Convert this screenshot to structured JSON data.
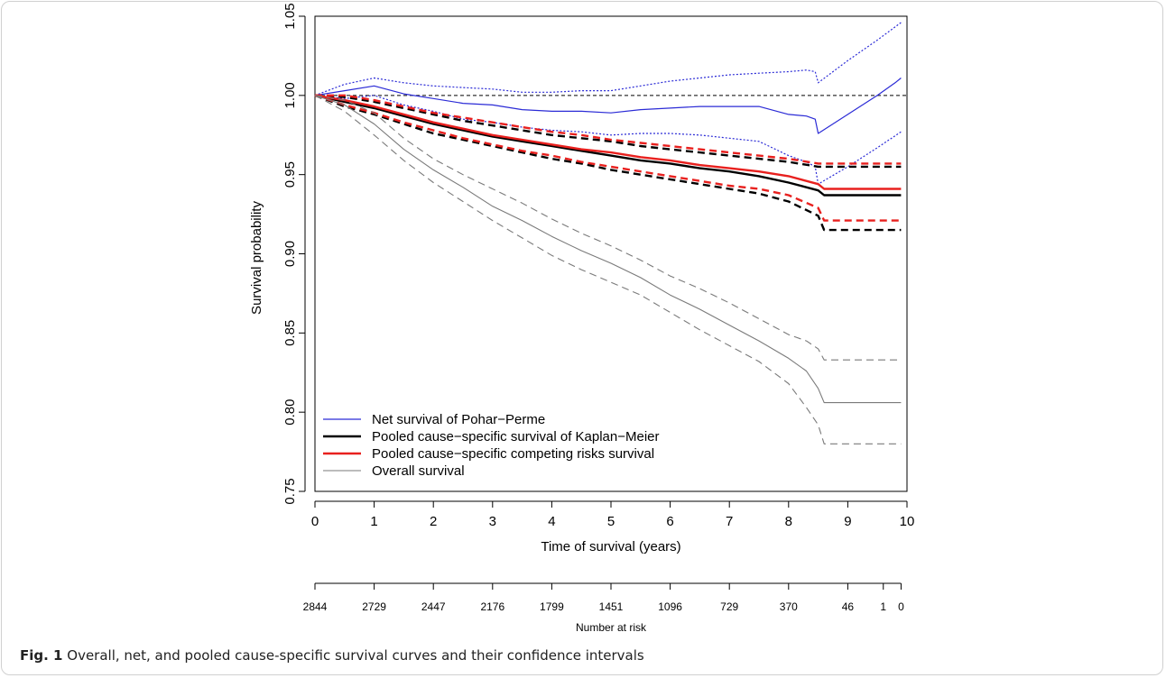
{
  "figure": {
    "label": "Fig. 1",
    "caption": "Overall, net, and pooled cause-specific survival curves and their confidence intervals"
  },
  "chart_data": {
    "type": "line",
    "xlabel": "Time of survival (years)",
    "ylabel": "Survival probability",
    "xlim": [
      0,
      10
    ],
    "ylim": [
      0.75,
      1.05
    ],
    "x_ticks": [
      0,
      1,
      2,
      3,
      4,
      5,
      6,
      7,
      8,
      9,
      10
    ],
    "y_ticks": [
      "0.75",
      "0.80",
      "0.85",
      "0.90",
      "0.95",
      "1.00",
      "1.05"
    ],
    "reference_line": 1.0,
    "legend_position": "bottom-left",
    "colors": {
      "net": "#2b2bd6",
      "km": "#000000",
      "cr": "#e8201e",
      "overall": "#7a7a7a"
    },
    "series": [
      {
        "name": "Net survival of Pohar−Perme",
        "color": "#2b2bd6",
        "style": "solid",
        "width": 1.2,
        "legend": true,
        "x": [
          0,
          0.5,
          1,
          1.5,
          2,
          2.5,
          3,
          3.5,
          4,
          4.5,
          5,
          5.5,
          6,
          6.5,
          7,
          7.5,
          8,
          8.3,
          8.45,
          8.5,
          9,
          9.5,
          9.8,
          9.9
        ],
        "y": [
          1.0,
          1.003,
          1.006,
          1.001,
          0.998,
          0.995,
          0.994,
          0.991,
          0.99,
          0.99,
          0.989,
          0.991,
          0.992,
          0.993,
          0.993,
          0.993,
          0.988,
          0.987,
          0.985,
          0.976,
          0.988,
          1.0,
          1.008,
          1.011
        ]
      },
      {
        "name": "",
        "color": "#2b2bd6",
        "style": "dotted",
        "width": 1.2,
        "legend": false,
        "x": [
          0,
          0.5,
          1,
          1.5,
          2,
          2.5,
          3,
          3.5,
          4,
          4.5,
          5,
          5.5,
          6,
          6.5,
          7,
          7.5,
          8,
          8.3,
          8.45,
          8.5,
          9,
          9.5,
          9.9
        ],
        "y": [
          1.0,
          1.007,
          1.011,
          1.008,
          1.006,
          1.005,
          1.004,
          1.002,
          1.002,
          1.003,
          1.003,
          1.006,
          1.009,
          1.011,
          1.013,
          1.014,
          1.015,
          1.016,
          1.015,
          1.008,
          1.022,
          1.035,
          1.046
        ]
      },
      {
        "name": "",
        "color": "#2b2bd6",
        "style": "dotted",
        "width": 1.2,
        "legend": false,
        "x": [
          0,
          0.5,
          1,
          1.5,
          2,
          2.5,
          3,
          3.5,
          4,
          4.5,
          5,
          5.5,
          6,
          6.5,
          7,
          7.5,
          8,
          8.3,
          8.45,
          8.5,
          9,
          9.5,
          9.9
        ],
        "y": [
          1.0,
          0.998,
          1.0,
          0.994,
          0.99,
          0.985,
          0.983,
          0.98,
          0.978,
          0.977,
          0.975,
          0.976,
          0.976,
          0.975,
          0.973,
          0.971,
          0.962,
          0.958,
          0.955,
          0.944,
          0.955,
          0.967,
          0.977
        ]
      },
      {
        "name": "Pooled cause−specific survival of Kaplan−Meier",
        "color": "#000000",
        "style": "solid",
        "width": 2.4,
        "legend": true,
        "x": [
          0,
          0.5,
          1,
          1.5,
          2,
          2.5,
          3,
          3.5,
          4,
          4.5,
          5,
          5.5,
          6,
          6.5,
          7,
          7.5,
          8,
          8.5,
          8.6,
          9,
          9.9
        ],
        "y": [
          1.0,
          0.996,
          0.992,
          0.987,
          0.982,
          0.978,
          0.974,
          0.971,
          0.968,
          0.965,
          0.962,
          0.959,
          0.957,
          0.954,
          0.952,
          0.949,
          0.945,
          0.94,
          0.937,
          0.937,
          0.937
        ]
      },
      {
        "name": "",
        "color": "#000000",
        "style": "dashed",
        "width": 2.4,
        "legend": false,
        "x": [
          0,
          0.5,
          1,
          1.5,
          2,
          2.5,
          3,
          3.5,
          4,
          4.5,
          5,
          5.5,
          6,
          6.5,
          7,
          7.5,
          8,
          8.5,
          8.6,
          9,
          9.9
        ],
        "y": [
          1.0,
          0.999,
          0.996,
          0.992,
          0.988,
          0.984,
          0.981,
          0.978,
          0.975,
          0.973,
          0.971,
          0.968,
          0.966,
          0.964,
          0.962,
          0.96,
          0.958,
          0.955,
          0.955,
          0.955,
          0.955
        ]
      },
      {
        "name": "",
        "color": "#000000",
        "style": "dashed",
        "width": 2.4,
        "legend": false,
        "x": [
          0,
          0.5,
          1,
          1.5,
          2,
          2.5,
          3,
          3.5,
          4,
          4.5,
          5,
          5.5,
          6,
          6.5,
          7,
          7.5,
          8,
          8.5,
          8.6,
          9,
          9.9
        ],
        "y": [
          1.0,
          0.993,
          0.988,
          0.982,
          0.976,
          0.972,
          0.968,
          0.964,
          0.96,
          0.957,
          0.953,
          0.95,
          0.947,
          0.944,
          0.941,
          0.938,
          0.933,
          0.924,
          0.915,
          0.915,
          0.915
        ]
      },
      {
        "name": "Pooled cause−specific competing risks survival",
        "color": "#e8201e",
        "style": "solid",
        "width": 2.4,
        "legend": true,
        "x": [
          0,
          0.5,
          1,
          1.5,
          2,
          2.5,
          3,
          3.5,
          4,
          4.5,
          5,
          5.5,
          6,
          6.5,
          7,
          7.5,
          8,
          8.5,
          8.6,
          9,
          9.9
        ],
        "y": [
          1.0,
          0.997,
          0.993,
          0.988,
          0.983,
          0.979,
          0.975,
          0.972,
          0.969,
          0.966,
          0.964,
          0.961,
          0.959,
          0.956,
          0.954,
          0.952,
          0.949,
          0.944,
          0.941,
          0.941,
          0.941
        ]
      },
      {
        "name": "",
        "color": "#e8201e",
        "style": "dashed",
        "width": 2.4,
        "legend": false,
        "x": [
          0,
          0.5,
          1,
          1.5,
          2,
          2.5,
          3,
          3.5,
          4,
          4.5,
          5,
          5.5,
          6,
          6.5,
          7,
          7.5,
          8,
          8.5,
          8.6,
          9,
          9.9
        ],
        "y": [
          1.0,
          1.0,
          0.997,
          0.993,
          0.989,
          0.986,
          0.983,
          0.98,
          0.977,
          0.975,
          0.972,
          0.97,
          0.968,
          0.966,
          0.964,
          0.962,
          0.96,
          0.957,
          0.957,
          0.957,
          0.957
        ]
      },
      {
        "name": "",
        "color": "#e8201e",
        "style": "dashed",
        "width": 2.4,
        "legend": false,
        "x": [
          0,
          0.5,
          1,
          1.5,
          2,
          2.5,
          3,
          3.5,
          4,
          4.5,
          5,
          5.5,
          6,
          6.5,
          7,
          7.5,
          8,
          8.5,
          8.6,
          9,
          9.9
        ],
        "y": [
          1.0,
          0.994,
          0.989,
          0.983,
          0.978,
          0.973,
          0.969,
          0.965,
          0.962,
          0.958,
          0.955,
          0.952,
          0.949,
          0.946,
          0.943,
          0.941,
          0.937,
          0.929,
          0.921,
          0.921,
          0.921
        ]
      },
      {
        "name": "Overall survival",
        "color": "#7a7a7a",
        "style": "solid",
        "width": 1.1,
        "legend": true,
        "x": [
          0,
          0.5,
          1,
          1.5,
          2,
          2.5,
          3,
          3.5,
          4,
          4.5,
          5,
          5.5,
          6,
          6.5,
          7,
          7.5,
          8,
          8.3,
          8.5,
          8.6,
          9,
          9.9
        ],
        "y": [
          1.0,
          0.994,
          0.982,
          0.966,
          0.953,
          0.942,
          0.93,
          0.921,
          0.911,
          0.902,
          0.894,
          0.885,
          0.874,
          0.865,
          0.855,
          0.845,
          0.834,
          0.826,
          0.815,
          0.806,
          0.806,
          0.806
        ]
      },
      {
        "name": "",
        "color": "#7a7a7a",
        "style": "dashed",
        "width": 1.1,
        "legend": false,
        "x": [
          0,
          0.5,
          1,
          1.5,
          2,
          2.5,
          3,
          3.5,
          4,
          4.5,
          5,
          5.5,
          6,
          6.5,
          7,
          7.5,
          8,
          8.3,
          8.5,
          8.6,
          9,
          9.9
        ],
        "y": [
          1.0,
          0.997,
          0.989,
          0.973,
          0.96,
          0.95,
          0.941,
          0.932,
          0.922,
          0.913,
          0.905,
          0.896,
          0.886,
          0.878,
          0.869,
          0.859,
          0.849,
          0.845,
          0.84,
          0.833,
          0.833,
          0.833
        ]
      },
      {
        "name": "",
        "color": "#7a7a7a",
        "style": "dashed",
        "width": 1.1,
        "legend": false,
        "x": [
          0,
          0.5,
          1,
          1.5,
          2,
          2.5,
          3,
          3.5,
          4,
          4.5,
          5,
          5.5,
          6,
          6.5,
          7,
          7.5,
          8,
          8.3,
          8.5,
          8.6,
          9,
          9.9
        ],
        "y": [
          1.0,
          0.99,
          0.975,
          0.959,
          0.945,
          0.933,
          0.921,
          0.91,
          0.899,
          0.89,
          0.882,
          0.874,
          0.863,
          0.852,
          0.842,
          0.832,
          0.818,
          0.803,
          0.792,
          0.78,
          0.78,
          0.78
        ]
      }
    ],
    "risk_table": {
      "label": "Number at risk",
      "x": [
        0,
        1,
        2,
        3,
        4,
        5,
        6,
        7,
        8,
        9,
        9.6,
        9.9
      ],
      "values": [
        "2844",
        "2729",
        "2447",
        "2176",
        "1799",
        "1451",
        "1096",
        "729",
        "370",
        "46",
        "1",
        "0"
      ]
    }
  }
}
